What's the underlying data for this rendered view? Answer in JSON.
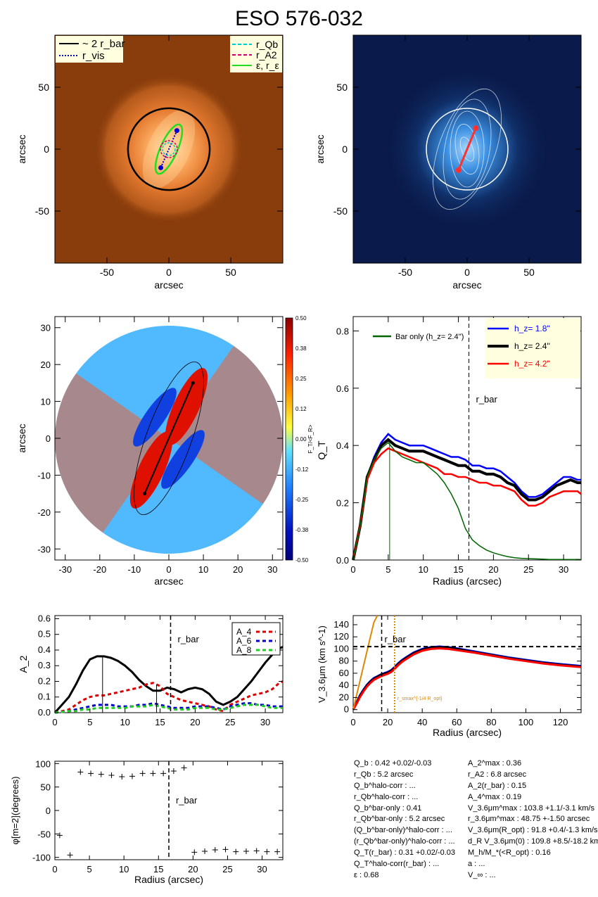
{
  "title": "ESO 576-032",
  "colors": {
    "orange_map": "#c8621e",
    "blue_map": "#0a1a4a",
    "black": "#000000",
    "blue": "#0000ff",
    "red": "#ff0000",
    "green": "#006400",
    "bright_green": "#22dd22",
    "cyan": "#00cccc",
    "magenta": "#cc0066",
    "orange_line": "#dd8800",
    "legend_bg": "#ffffe0"
  },
  "panels": {
    "p1": {
      "xlabel": "arcsec",
      "ylabel": "arcsec",
      "xticks": [
        "-50",
        "0",
        "50"
      ],
      "yticks": [
        "50",
        "0",
        "-50"
      ],
      "legend_left": [
        "~ 2 r_bar",
        "r_vis"
      ],
      "legend_right": [
        "r_Qb",
        "r_A2",
        "ε, r_ε"
      ]
    },
    "p2": {
      "xlabel": "arcsec",
      "ylabel": "arcsec",
      "xticks": [
        "-50",
        "0",
        "50"
      ],
      "yticks": [
        "50",
        "0",
        "-50"
      ]
    },
    "p3": {
      "xlabel": "arcsec",
      "ylabel": "arcsec",
      "xticks": [
        "-30",
        "-20",
        "-10",
        "0",
        "10",
        "20",
        "30"
      ],
      "yticks": [
        "30",
        "20",
        "10",
        "0",
        "-10",
        "-20",
        "-30"
      ],
      "cbar_ticks": [
        "0.50",
        "0.38",
        "0.25",
        "0.12",
        "0.00",
        "-0.12",
        "-0.25",
        "-0.38",
        "-0.50"
      ],
      "cbar_label": "F_T/<F_R>"
    },
    "p4": {
      "xlabel": "Radius (arcsec)",
      "ylabel": "Q_T",
      "rbar_label": "r_bar",
      "bar_only_label": "Bar only (h_z=  2.4'')",
      "legend": [
        "h_z=  1.8''",
        "h_z=  2.4''",
        "h_z=  4.2''"
      ]
    },
    "p5": {
      "xlabel": "",
      "ylabel": "A_2",
      "rbar_label": "r_bar",
      "legend": [
        "A_4",
        "A_6",
        "A_8"
      ]
    },
    "p6": {
      "xlabel": "Radius (arcsec)",
      "ylabel": "V_3.6μm (km s^-1)",
      "rbar_label": "r_bar",
      "rmax_label": "r_smax^{-1/4 R_opt}"
    },
    "p7": {
      "xlabel": "Radius (arcsec)",
      "ylabel": "φ[m=2](degrees)",
      "rbar_label": "r_bar"
    }
  },
  "chart_data": [
    {
      "type": "image",
      "title": "ESO 576-032",
      "xlim": [
        -92,
        92
      ],
      "ylim": [
        -92,
        92
      ],
      "xlabel": "arcsec",
      "ylabel": "arcsec",
      "circle_radius": 33,
      "bar_endpoints": [
        [
          -6.5,
          -15
        ],
        [
          6.5,
          15
        ]
      ]
    },
    {
      "type": "image",
      "xlim": [
        -92,
        92
      ],
      "ylim": [
        -92,
        92
      ],
      "xlabel": "arcsec",
      "ylabel": "arcsec"
    },
    {
      "type": "heatmap",
      "xlim": [
        -33,
        33
      ],
      "ylim": [
        -33,
        33
      ],
      "xlabel": "arcsec",
      "ylabel": "arcsec",
      "clim": [
        -0.5,
        0.5
      ],
      "bar_endpoints": [
        [
          -7,
          -15
        ],
        [
          7,
          15
        ]
      ]
    },
    {
      "type": "line",
      "xlabel": "Radius (arcsec)",
      "ylabel": "Q_T",
      "xlim": [
        0,
        32.5
      ],
      "ylim": [
        0,
        0.85
      ],
      "rbar": 16.5,
      "x": [
        0,
        1,
        2,
        3,
        4,
        5,
        6,
        7,
        8,
        9,
        10,
        11,
        12,
        13,
        14,
        15,
        16,
        17,
        18,
        19,
        20,
        21,
        22,
        23,
        24,
        25,
        26,
        27,
        28,
        29,
        30,
        31,
        32,
        32.5
      ],
      "series": [
        {
          "name": "h_z=  1.8''",
          "color": "blue",
          "values": [
            0,
            0.12,
            0.29,
            0.36,
            0.41,
            0.44,
            0.42,
            0.41,
            0.4,
            0.4,
            0.4,
            0.39,
            0.38,
            0.37,
            0.36,
            0.36,
            0.35,
            0.33,
            0.33,
            0.32,
            0.32,
            0.31,
            0.29,
            0.27,
            0.24,
            0.22,
            0.22,
            0.23,
            0.25,
            0.27,
            0.29,
            0.29,
            0.28,
            0.28
          ]
        },
        {
          "name": "h_z=  2.4''",
          "color": "black",
          "values": [
            0,
            0.12,
            0.29,
            0.35,
            0.4,
            0.42,
            0.4,
            0.39,
            0.38,
            0.38,
            0.38,
            0.37,
            0.36,
            0.35,
            0.34,
            0.33,
            0.33,
            0.31,
            0.31,
            0.3,
            0.3,
            0.29,
            0.27,
            0.26,
            0.23,
            0.21,
            0.21,
            0.22,
            0.24,
            0.26,
            0.27,
            0.28,
            0.27,
            0.27
          ]
        },
        {
          "name": "h_z=  4.2''",
          "color": "red",
          "values": [
            0,
            0.12,
            0.28,
            0.34,
            0.37,
            0.39,
            0.38,
            0.37,
            0.36,
            0.35,
            0.34,
            0.33,
            0.32,
            0.3,
            0.3,
            0.29,
            0.29,
            0.28,
            0.27,
            0.27,
            0.26,
            0.26,
            0.25,
            0.24,
            0.21,
            0.19,
            0.19,
            0.2,
            0.22,
            0.23,
            0.24,
            0.24,
            0.24,
            0.23
          ]
        },
        {
          "name": "Bar only (h_z=  2.4'')",
          "color": "green",
          "values": [
            0,
            0.12,
            0.29,
            0.35,
            0.39,
            0.41,
            0.38,
            0.36,
            0.35,
            0.34,
            0.34,
            0.32,
            0.3,
            0.27,
            0.23,
            0.18,
            0.11,
            0.07,
            0.05,
            0.035,
            0.025,
            0.018,
            0.012,
            0.008,
            0.006,
            0.005,
            0.004,
            0.003,
            0.002,
            0.002,
            0.002,
            0.002,
            0.002,
            0.002
          ]
        }
      ]
    },
    {
      "type": "line",
      "ylabel": "A_2",
      "xlim": [
        0,
        32.5
      ],
      "ylim": [
        0,
        0.62
      ],
      "rbar": 16.5,
      "x": [
        0,
        1,
        2,
        3,
        4,
        5,
        6,
        7,
        8,
        9,
        10,
        11,
        12,
        13,
        14,
        15,
        16,
        17,
        18,
        19,
        20,
        21,
        22,
        23,
        24,
        25,
        26,
        27,
        28,
        29,
        30,
        31,
        32,
        32.5
      ],
      "series": [
        {
          "name": "A_2",
          "color": "black",
          "values": [
            0,
            0.05,
            0.1,
            0.18,
            0.27,
            0.34,
            0.36,
            0.36,
            0.35,
            0.33,
            0.3,
            0.26,
            0.21,
            0.17,
            0.14,
            0.14,
            0.16,
            0.15,
            0.13,
            0.15,
            0.16,
            0.15,
            0.12,
            0.07,
            0.05,
            0.07,
            0.1,
            0.15,
            0.2,
            0.26,
            0.32,
            0.37,
            0.41,
            0.42
          ]
        },
        {
          "name": "A_4",
          "color": "red",
          "values": [
            0,
            0.01,
            0.02,
            0.05,
            0.08,
            0.1,
            0.11,
            0.11,
            0.12,
            0.13,
            0.14,
            0.15,
            0.16,
            0.18,
            0.19,
            0.17,
            0.12,
            0.1,
            0.08,
            0.07,
            0.06,
            0.05,
            0.04,
            0.02,
            0.01,
            0.05,
            0.07,
            0.09,
            0.11,
            0.12,
            0.13,
            0.15,
            0.19,
            0.2
          ]
        },
        {
          "name": "A_6",
          "color": "blue",
          "values": [
            0,
            0.005,
            0.01,
            0.02,
            0.03,
            0.04,
            0.05,
            0.05,
            0.05,
            0.04,
            0.04,
            0.04,
            0.05,
            0.05,
            0.06,
            0.05,
            0.04,
            0.03,
            0.03,
            0.03,
            0.04,
            0.04,
            0.04,
            0.03,
            0.02,
            0.04,
            0.05,
            0.06,
            0.06,
            0.05,
            0.05,
            0.04,
            0.04,
            0.04
          ]
        },
        {
          "name": "A_8",
          "color": "green",
          "values": [
            0,
            0.005,
            0.01,
            0.01,
            0.02,
            0.02,
            0.03,
            0.03,
            0.03,
            0.03,
            0.03,
            0.04,
            0.04,
            0.04,
            0.05,
            0.04,
            0.03,
            0.02,
            0.02,
            0.02,
            0.03,
            0.03,
            0.03,
            0.02,
            0.02,
            0.03,
            0.04,
            0.05,
            0.05,
            0.05,
            0.04,
            0.03,
            0.03,
            0.03
          ]
        }
      ]
    },
    {
      "type": "line",
      "xlabel": "Radius (arcsec)",
      "ylabel": "V_3.6μm (km s^-1)",
      "xlim": [
        0,
        132
      ],
      "ylim": [
        -5,
        155
      ],
      "rbar": 16.5,
      "rmax": 24,
      "hline": 103.8,
      "x": [
        0,
        2,
        4,
        6,
        8,
        10,
        12,
        14,
        16,
        18,
        20,
        22,
        24,
        26,
        28,
        30,
        35,
        40,
        45,
        50,
        55,
        60,
        70,
        80,
        90,
        100,
        110,
        120,
        132
      ],
      "series": [
        {
          "name": "h_z=  1.8''",
          "color": "blue",
          "values": [
            0,
            12,
            24,
            33,
            41,
            47,
            52,
            55,
            58,
            60,
            62,
            65,
            70,
            76,
            81,
            85,
            94,
            100,
            103,
            104,
            103,
            101,
            96,
            91,
            86,
            82,
            78,
            75,
            72
          ]
        },
        {
          "name": "h_z=  2.4''",
          "color": "black",
          "values": [
            0,
            11,
            23,
            32,
            40,
            46,
            51,
            54,
            57,
            59,
            61,
            64,
            69,
            75,
            80,
            84,
            93,
            99,
            102,
            103,
            102,
            100,
            95,
            90,
            85,
            81,
            77,
            74,
            71
          ]
        },
        {
          "name": "h_z=  4.2''",
          "color": "red",
          "values": [
            0,
            10,
            21,
            30,
            38,
            44,
            49,
            52,
            55,
            57,
            59,
            62,
            67,
            73,
            78,
            82,
            91,
            97,
            100,
            101,
            100,
            98,
            94,
            89,
            84,
            80,
            76,
            73,
            70
          ]
        },
        {
          "name": "rising",
          "color": "orange",
          "values": [
            0,
            24,
            48,
            72,
            96,
            120,
            144,
            168,
            null,
            null,
            null,
            null,
            null,
            null,
            null,
            null,
            null,
            null,
            null,
            null,
            null,
            null,
            null,
            null,
            null,
            null,
            null,
            null,
            null
          ]
        }
      ]
    },
    {
      "type": "scatter",
      "xlabel": "Radius (arcsec)",
      "ylabel": "φ[m=2](degrees)",
      "xlim": [
        0,
        33
      ],
      "ylim": [
        -105,
        105
      ],
      "rbar": 16.5,
      "points": [
        [
          0.7,
          -53
        ],
        [
          2.2,
          -95
        ],
        [
          3.7,
          82
        ],
        [
          5.2,
          79
        ],
        [
          6.7,
          77
        ],
        [
          8.2,
          75
        ],
        [
          9.7,
          72
        ],
        [
          11.2,
          73
        ],
        [
          12.7,
          79
        ],
        [
          14.2,
          79
        ],
        [
          15.7,
          79
        ],
        [
          17.2,
          84
        ],
        [
          18.7,
          91
        ],
        [
          20.2,
          -89
        ],
        [
          21.7,
          -87
        ],
        [
          23.2,
          -84
        ],
        [
          24.7,
          -83
        ],
        [
          26.2,
          -88
        ],
        [
          27.7,
          -87
        ],
        [
          29.2,
          -86
        ],
        [
          30.7,
          -88
        ],
        [
          32.2,
          -88
        ]
      ]
    }
  ],
  "stats_left": [
    "Q_b :  0.42 +0.02/-0.03",
    "r_Qb :  5.2  arcsec",
    "Q_b^halo-corr : ...",
    "r_Qb^halo-corr : ...",
    "Q_b^bar-only :  0.41",
    "r_Qb^bar-only :  5.2 arcsec",
    "(Q_b^bar-only)^halo-corr : ...",
    "(r_Qb^bar-only)^halo-corr : ...",
    "Q_T(r_bar) :  0.31 +0.02/-0.03",
    "Q_T^halo-corr(r_bar) : ...",
    "ε :  0.68"
  ],
  "stats_right": [
    "A_2^max :  0.36",
    "r_A2 :  6.8 arcsec",
    "A_2(r_bar) :  0.15",
    "A_4^max :  0.19",
    "V_3.6μm^max :  103.8 +1.1/-3.1 km/s",
    "r_3.6μm^max :  48.75 +-1.50 arcsec",
    "V_3.6μm(R_opt) :  91.8 +0.4/-1.3 km/s",
    "d_R V_3.6μm(0) :  109.8 +8.5/-18.2 km/s/kpc",
    "M_h/M_*(<R_opt) :  0.16",
    "a : ...",
    "V_∞ : ..."
  ]
}
